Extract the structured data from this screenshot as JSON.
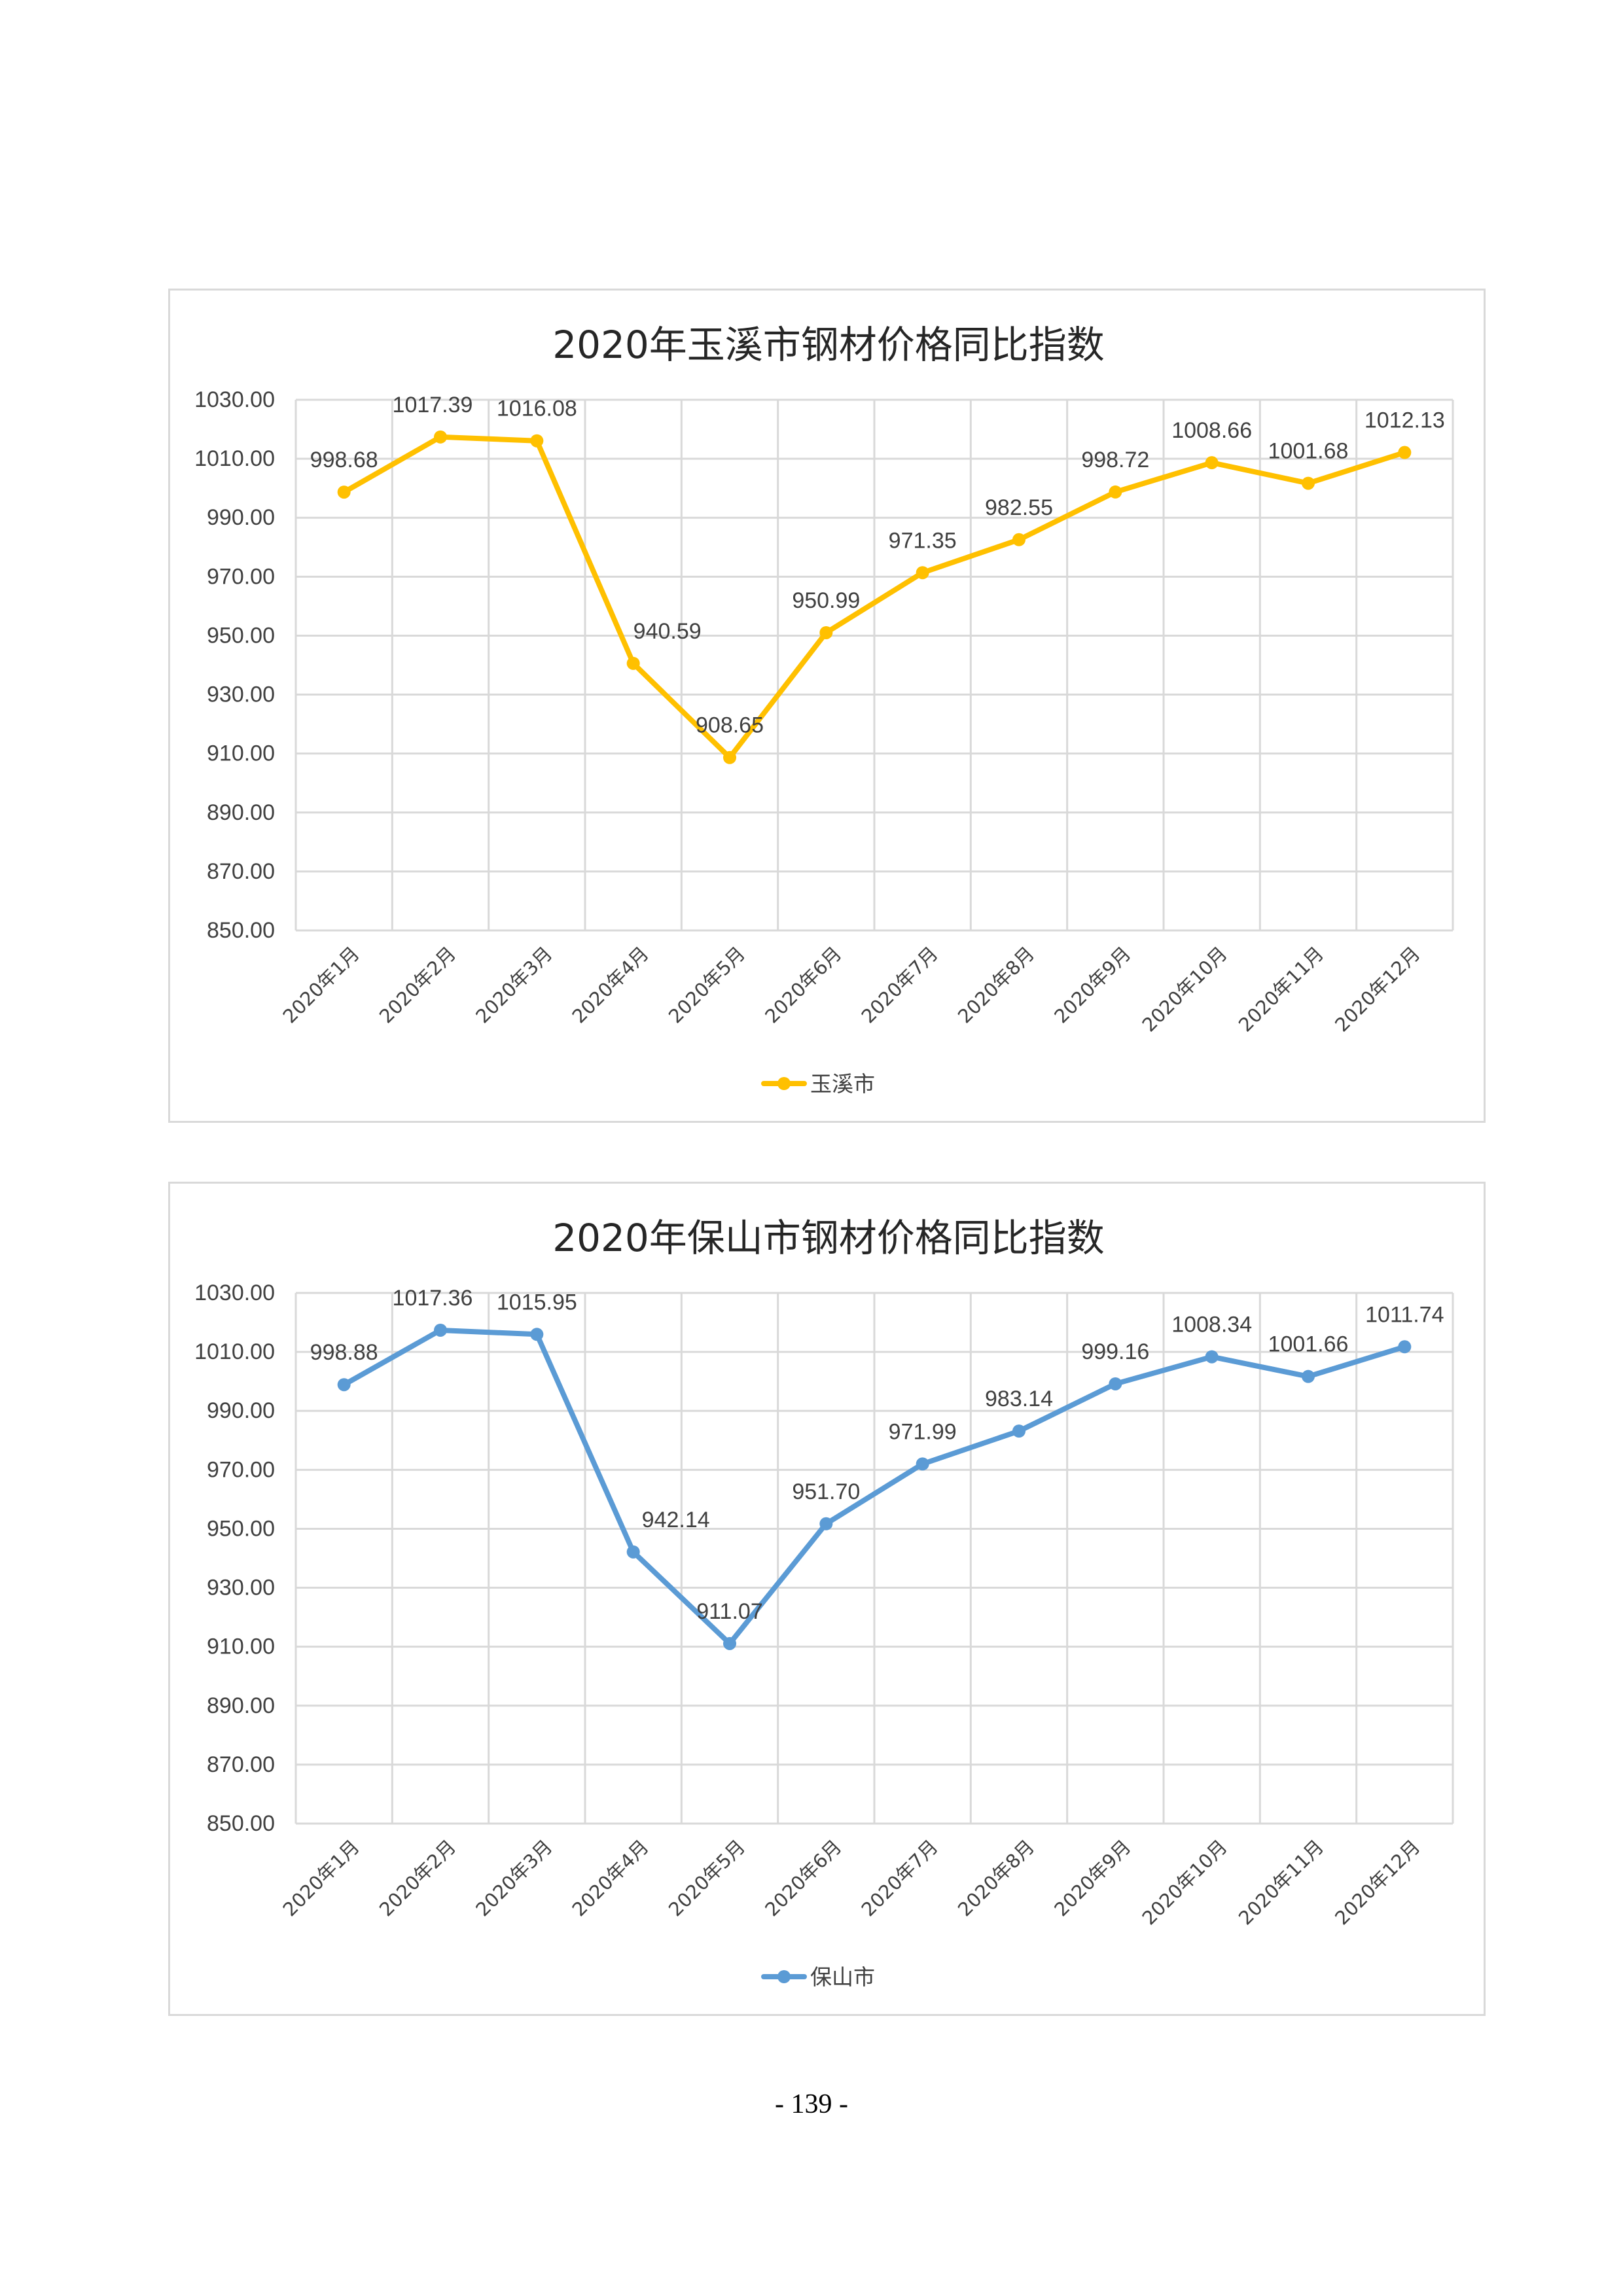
{
  "page_number": "- 139 -",
  "chart_data": [
    {
      "type": "line",
      "title": "2020年玉溪市钢材价格同比指数",
      "categories": [
        "2020年1月",
        "2020年2月",
        "2020年3月",
        "2020年4月",
        "2020年5月",
        "2020年6月",
        "2020年7月",
        "2020年8月",
        "2020年9月",
        "2020年10月",
        "2020年11月",
        "2020年12月"
      ],
      "series": [
        {
          "name": "玉溪市",
          "values": [
            998.68,
            1017.39,
            1016.08,
            940.59,
            908.65,
            950.99,
            971.35,
            982.55,
            998.72,
            1008.66,
            1001.68,
            1012.13
          ],
          "labels": [
            "998.68",
            "1017.39",
            "1016.08",
            "940.59",
            "908.65",
            "950.99",
            "971.35",
            "982.55",
            "998.72",
            "1008.66",
            "1001.68",
            "1012.13"
          ],
          "color": "#ffc000"
        }
      ],
      "ylim": [
        850,
        1030
      ],
      "y_ticks": [
        "1030.00",
        "1010.00",
        "990.00",
        "970.00",
        "950.00",
        "930.00",
        "910.00",
        "890.00",
        "870.00",
        "850.00"
      ],
      "xlabel": "",
      "ylabel": "",
      "grid": true,
      "legend_position": "bottom"
    },
    {
      "type": "line",
      "title": "2020年保山市钢材价格同比指数",
      "categories": [
        "2020年1月",
        "2020年2月",
        "2020年3月",
        "2020年4月",
        "2020年5月",
        "2020年6月",
        "2020年7月",
        "2020年8月",
        "2020年9月",
        "2020年10月",
        "2020年11月",
        "2020年12月"
      ],
      "series": [
        {
          "name": "保山市",
          "values": [
            998.88,
            1017.36,
            1015.95,
            942.14,
            911.07,
            951.7,
            971.99,
            983.14,
            999.16,
            1008.34,
            1001.66,
            1011.74
          ],
          "labels": [
            "998.88",
            "1017.36",
            "1015.95",
            "942.14",
            "911.07",
            "951.70",
            "971.99",
            "983.14",
            "999.16",
            "1008.34",
            "1001.66",
            "1011.74"
          ],
          "color": "#5b9bd5"
        }
      ],
      "ylim": [
        850,
        1030
      ],
      "y_ticks": [
        "1030.00",
        "1010.00",
        "990.00",
        "970.00",
        "950.00",
        "930.00",
        "910.00",
        "890.00",
        "870.00",
        "850.00"
      ],
      "xlabel": "",
      "ylabel": "",
      "grid": true,
      "legend_position": "bottom"
    }
  ]
}
